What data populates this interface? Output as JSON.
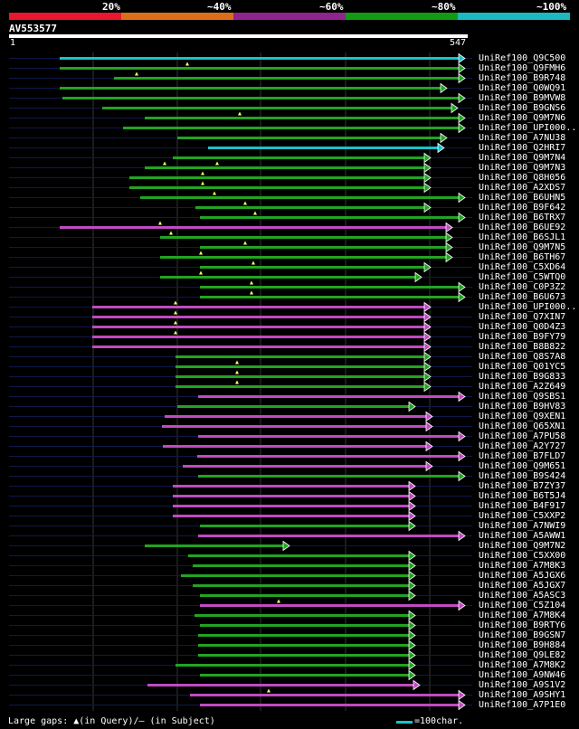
{
  "legend": {
    "segments": [
      {
        "color": "#e8172e"
      },
      {
        "color": "#dd6d19"
      },
      {
        "color": "#8e248e"
      },
      {
        "color": "#129a12"
      },
      {
        "color": "#1cb9c1"
      }
    ],
    "labels": [
      "20%",
      "~40%",
      "~60%",
      "~80%",
      "~100%"
    ]
  },
  "query": {
    "id": "AV553577",
    "start": "1",
    "end": "547",
    "length": 547
  },
  "footer": {
    "gaps_text": "Large gaps: ▲(in Query)/– (in Subject)",
    "scale_text": "=100char."
  },
  "colors": {
    "purple": "#c04bc2",
    "green": "#22a422",
    "cyan": "#19c3cb"
  },
  "hits": [
    {
      "name": "UniRef100_Q9C500",
      "start": 66,
      "end": 514,
      "color": "cyan",
      "qgaps": []
    },
    {
      "name": "UniRef100_Q9FMH6",
      "start": 66,
      "end": 514,
      "color": "green",
      "qgaps": [
        207
      ]
    },
    {
      "name": "UniRef100_B9R748",
      "start": 126,
      "end": 514,
      "color": "green",
      "qgaps": [
        151
      ]
    },
    {
      "name": "UniRef100_Q0WQ91",
      "start": 66,
      "end": 494,
      "color": "green",
      "qgaps": []
    },
    {
      "name": "UniRef100_B9MVW8",
      "start": 69,
      "end": 514,
      "color": "green",
      "qgaps": []
    },
    {
      "name": "UniRef100_B9GNS6",
      "start": 113,
      "end": 506,
      "color": "green",
      "qgaps": []
    },
    {
      "name": "UniRef100_Q9M7N6",
      "start": 160,
      "end": 514,
      "color": "green",
      "qgaps": [
        265
      ]
    },
    {
      "name": "UniRef100_UPI000..",
      "start": 136,
      "end": 514,
      "color": "green",
      "qgaps": []
    },
    {
      "name": "UniRef100_A7NU38",
      "start": 196,
      "end": 494,
      "color": "green",
      "qgaps": []
    },
    {
      "name": "UniRef100_Q2HRI7",
      "start": 230,
      "end": 491,
      "color": "cyan",
      "qgaps": []
    },
    {
      "name": "UniRef100_Q9M7N4",
      "start": 191,
      "end": 476,
      "color": "green",
      "qgaps": []
    },
    {
      "name": "UniRef100_Q9M7N3",
      "start": 160,
      "end": 476,
      "color": "green",
      "qgaps": [
        182,
        240
      ]
    },
    {
      "name": "UniRef100_Q8H056",
      "start": 143,
      "end": 476,
      "color": "green",
      "qgaps": [
        224
      ]
    },
    {
      "name": "UniRef100_A2XDS7",
      "start": 143,
      "end": 476,
      "color": "green",
      "qgaps": [
        224
      ]
    },
    {
      "name": "UniRef100_B6UHN5",
      "start": 155,
      "end": 514,
      "color": "green",
      "qgaps": [
        237
      ]
    },
    {
      "name": "UniRef100_B9F642",
      "start": 216,
      "end": 476,
      "color": "green",
      "qgaps": [
        271
      ]
    },
    {
      "name": "UniRef100_B6TRX7",
      "start": 221,
      "end": 514,
      "color": "green",
      "qgaps": [
        282
      ]
    },
    {
      "name": "UniRef100_B6UE92",
      "start": 66,
      "end": 500,
      "color": "purple",
      "qgaps": [
        177
      ]
    },
    {
      "name": "UniRef100_B6SJL1",
      "start": 177,
      "end": 500,
      "color": "green",
      "qgaps": [
        189
      ]
    },
    {
      "name": "UniRef100_Q9M7N5",
      "start": 221,
      "end": 500,
      "color": "green",
      "qgaps": [
        271
      ]
    },
    {
      "name": "UniRef100_B6TH67",
      "start": 177,
      "end": 500,
      "color": "green",
      "qgaps": [
        222
      ]
    },
    {
      "name": "UniRef100_C5XD64",
      "start": 221,
      "end": 476,
      "color": "green",
      "qgaps": [
        280
      ]
    },
    {
      "name": "UniRef100_C5WTQ0",
      "start": 177,
      "end": 466,
      "color": "green",
      "qgaps": [
        222
      ]
    },
    {
      "name": "UniRef100_C0P3Z2",
      "start": 221,
      "end": 514,
      "color": "green",
      "qgaps": [
        278
      ]
    },
    {
      "name": "UniRef100_B6U673",
      "start": 221,
      "end": 514,
      "color": "green",
      "qgaps": [
        278
      ]
    },
    {
      "name": "UniRef100_UPI000..",
      "start": 102,
      "end": 476,
      "color": "purple",
      "qgaps": [
        194
      ]
    },
    {
      "name": "UniRef100_Q7XIN7",
      "start": 102,
      "end": 476,
      "color": "purple",
      "qgaps": [
        194
      ]
    },
    {
      "name": "UniRef100_Q0D4Z3",
      "start": 102,
      "end": 476,
      "color": "purple",
      "qgaps": [
        194
      ]
    },
    {
      "name": "UniRef100_B9FY79",
      "start": 102,
      "end": 476,
      "color": "purple",
      "qgaps": [
        194
      ]
    },
    {
      "name": "UniRef100_B8B822",
      "start": 102,
      "end": 476,
      "color": "purple",
      "qgaps": []
    },
    {
      "name": "UniRef100_Q8S7A8",
      "start": 194,
      "end": 476,
      "color": "green",
      "qgaps": []
    },
    {
      "name": "UniRef100_Q01YC5",
      "start": 194,
      "end": 476,
      "color": "green",
      "qgaps": [
        262
      ]
    },
    {
      "name": "UniRef100_B9G833",
      "start": 194,
      "end": 476,
      "color": "green",
      "qgaps": [
        262
      ]
    },
    {
      "name": "UniRef100_A2Z649",
      "start": 194,
      "end": 476,
      "color": "green",
      "qgaps": [
        262
      ]
    },
    {
      "name": "UniRef100_Q9SBS1",
      "start": 219,
      "end": 514,
      "color": "purple",
      "qgaps": []
    },
    {
      "name": "UniRef100_B9HV83",
      "start": 196,
      "end": 459,
      "color": "green",
      "qgaps": []
    },
    {
      "name": "UniRef100_Q9XEN1",
      "start": 182,
      "end": 478,
      "color": "purple",
      "qgaps": []
    },
    {
      "name": "UniRef100_Q65XN1",
      "start": 179,
      "end": 478,
      "color": "purple",
      "qgaps": []
    },
    {
      "name": "UniRef100_A7PU58",
      "start": 219,
      "end": 514,
      "color": "purple",
      "qgaps": []
    },
    {
      "name": "UniRef100_A2Y727",
      "start": 180,
      "end": 478,
      "color": "purple",
      "qgaps": []
    },
    {
      "name": "UniRef100_B7FLD7",
      "start": 218,
      "end": 514,
      "color": "purple",
      "qgaps": []
    },
    {
      "name": "UniRef100_Q9M651",
      "start": 202,
      "end": 478,
      "color": "purple",
      "qgaps": []
    },
    {
      "name": "UniRef100_B9S424",
      "start": 219,
      "end": 514,
      "color": "green",
      "qgaps": []
    },
    {
      "name": "UniRef100_B7ZY37",
      "start": 191,
      "end": 459,
      "color": "purple",
      "qgaps": []
    },
    {
      "name": "UniRef100_B6T5J4",
      "start": 191,
      "end": 459,
      "color": "purple",
      "qgaps": []
    },
    {
      "name": "UniRef100_B4F917",
      "start": 191,
      "end": 459,
      "color": "purple",
      "qgaps": []
    },
    {
      "name": "UniRef100_C5XXP2",
      "start": 191,
      "end": 459,
      "color": "purple",
      "qgaps": []
    },
    {
      "name": "UniRef100_A7NWI9",
      "start": 221,
      "end": 459,
      "color": "green",
      "qgaps": []
    },
    {
      "name": "UniRef100_A5AWW1",
      "start": 219,
      "end": 514,
      "color": "purple",
      "qgaps": []
    },
    {
      "name": "UniRef100_Q9M7N2",
      "start": 160,
      "end": 320,
      "color": "green",
      "qgaps": []
    },
    {
      "name": "UniRef100_C5XX00",
      "start": 208,
      "end": 459,
      "color": "green",
      "qgaps": []
    },
    {
      "name": "UniRef100_A7M8K3",
      "start": 213,
      "end": 459,
      "color": "green",
      "qgaps": []
    },
    {
      "name": "UniRef100_A5JGX6",
      "start": 200,
      "end": 459,
      "color": "green",
      "qgaps": []
    },
    {
      "name": "UniRef100_A5JGX7",
      "start": 213,
      "end": 459,
      "color": "green",
      "qgaps": []
    },
    {
      "name": "UniRef100_A5ASC3",
      "start": 221,
      "end": 459,
      "color": "green",
      "qgaps": []
    },
    {
      "name": "UniRef100_C5Z104",
      "start": 221,
      "end": 514,
      "color": "purple",
      "qgaps": [
        308
      ]
    },
    {
      "name": "UniRef100_A7M8K4",
      "start": 215,
      "end": 459,
      "color": "green",
      "qgaps": []
    },
    {
      "name": "UniRef100_B9RTY6",
      "start": 221,
      "end": 459,
      "color": "green",
      "qgaps": []
    },
    {
      "name": "UniRef100_B9GSN7",
      "start": 219,
      "end": 459,
      "color": "green",
      "qgaps": []
    },
    {
      "name": "UniRef100_B9H884",
      "start": 219,
      "end": 459,
      "color": "green",
      "qgaps": []
    },
    {
      "name": "UniRef100_Q9LE82",
      "start": 219,
      "end": 459,
      "color": "green",
      "qgaps": []
    },
    {
      "name": "UniRef100_A7M8K2",
      "start": 194,
      "end": 459,
      "color": "green",
      "qgaps": []
    },
    {
      "name": "UniRef100_A9NW46",
      "start": 221,
      "end": 459,
      "color": "green",
      "qgaps": []
    },
    {
      "name": "UniRef100_A9S1V2",
      "start": 163,
      "end": 464,
      "color": "purple",
      "qgaps": []
    },
    {
      "name": "UniRef100_A9SHY1",
      "start": 210,
      "end": 514,
      "color": "purple",
      "qgaps": [
        297
      ]
    },
    {
      "name": "UniRef100_A7P1E0",
      "start": 221,
      "end": 514,
      "color": "purple",
      "qgaps": []
    }
  ]
}
